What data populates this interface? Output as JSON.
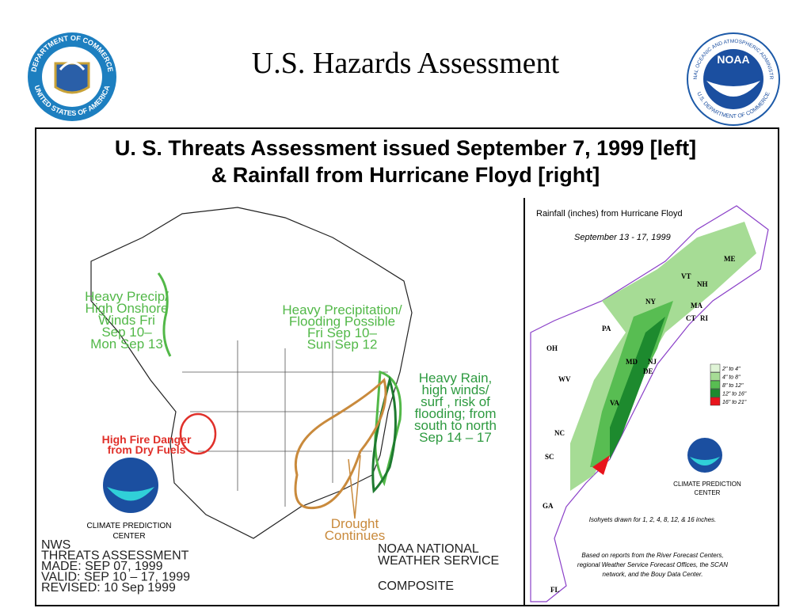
{
  "header": {
    "title": "U.S. Hazards Assessment",
    "left_seal": {
      "top": "DEPARTMENT OF COMMERCE",
      "bottom": "UNITED STATES OF AMERICA"
    },
    "right_seal": {
      "name": "NOAA",
      "ring": "NATIONAL OCEANIC AND ATMOSPHERIC ADMINISTRATION",
      "bottom": "U.S. DEPARTMENT OF COMMERCE"
    }
  },
  "figure": {
    "title": [
      "U. S. Threats Assessment issued September 7, 1999 [left]",
      "& Rainfall from Hurricane Floyd [right]"
    ],
    "left_map": {
      "annotations": [
        {
          "lines": [
            "Heavy Precip/",
            "High Onshore",
            "Winds Fri",
            "Sep 10–",
            "Mon Sep 13"
          ],
          "color": "#52b848"
        },
        {
          "lines": [
            "Heavy Precipitation/",
            "Flooding Possible",
            "Fri Sep 10–",
            "Sun Sep 12"
          ],
          "color": "#52b848"
        },
        {
          "lines": [
            "Heavy Rain,",
            "high winds/",
            "surf , risk of",
            "flooding; from",
            "south to north",
            "Sep 14 – 17"
          ],
          "color": "#2e9a40"
        },
        {
          "lines": [
            "High Fire Danger",
            "from Dry Fuels"
          ],
          "color": "#e0302a"
        },
        {
          "lines": [
            "Drought",
            "Continues"
          ],
          "color": "#c98a3c"
        }
      ],
      "logo_label": [
        "CLIMATE PREDICTION",
        "CENTER"
      ],
      "footer_left": [
        "NWS",
        "THREATS ASSESSMENT",
        "MADE: SEP 07, 1999",
        "VALID: SEP 10 – 17, 1999",
        "REVISED: 10 Sep 1999"
      ],
      "footer_right": [
        "NOAA NATIONAL",
        "WEATHER SERVICE",
        "COMPOSITE"
      ]
    },
    "right_map": {
      "title": "Rainfall (inches) from Hurricane Floyd",
      "dates": "September 13 - 17, 1999",
      "states": [
        "ME",
        "VT",
        "NH",
        "NY",
        "MA",
        "CT",
        "RI",
        "PA",
        "NJ",
        "MD",
        "DE",
        "OH",
        "WV",
        "VA",
        "NC",
        "SC",
        "GA",
        "FL"
      ],
      "legend": [
        {
          "label": "2\" to 4\"",
          "color": "#dff4d6"
        },
        {
          "label": "4\" to 8\"",
          "color": "#a6dc95"
        },
        {
          "label": "8\" to 12\"",
          "color": "#58bd52"
        },
        {
          "label": "12\" to 16\"",
          "color": "#1d8a2e"
        },
        {
          "label": "16\" to 21\"",
          "color": "#e8141c"
        }
      ],
      "logo_label": [
        "CLIMATE PREDICTION",
        "CENTER"
      ],
      "isohyet_note": "Isohyets drawn for 1, 2, 4, 8, 12, & 16 inches.",
      "source_note": [
        "Based on reports from the River Forecast Centers,",
        "regional Weather Service Forecast Offices, the SCAN",
        "network, and the Bouy Data Center."
      ]
    }
  }
}
